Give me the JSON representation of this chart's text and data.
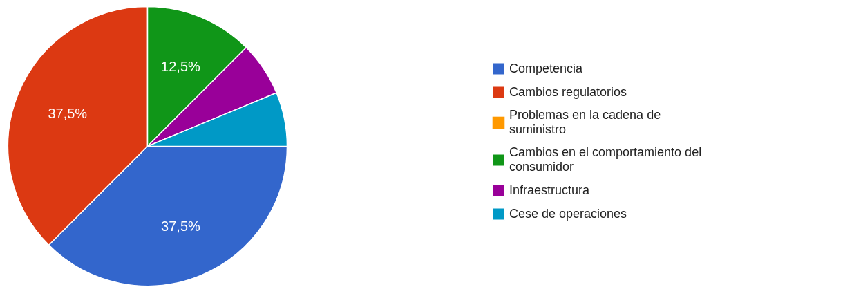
{
  "chart_data": {
    "type": "pie",
    "categories": [
      "Competencia",
      "Cambios regulatorios",
      "Problemas en la cadena de suministro",
      "Cambios en el comportamiento del consumidor",
      "Infraestructura",
      "Cese de operaciones"
    ],
    "values": [
      37.5,
      37.5,
      0,
      12.5,
      6.25,
      6.25
    ],
    "colors": [
      "#3366cc",
      "#dc3912",
      "#ff9900",
      "#109618",
      "#990099",
      "#0099c6"
    ],
    "value_labels": [
      "37,5%",
      "37,5%",
      null,
      "12,5%",
      null,
      null
    ],
    "legend": "right"
  }
}
